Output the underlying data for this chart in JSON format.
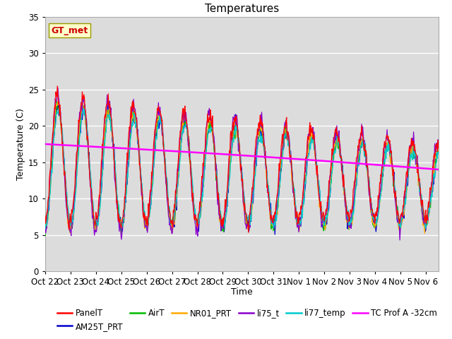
{
  "title": "Temperatures",
  "xlabel": "Time",
  "ylabel": "Temperature (C)",
  "ylim": [
    0,
    35
  ],
  "xlim_days": 15.5,
  "x_tick_labels": [
    "Oct 22",
    "Oct 23",
    "Oct 24",
    "Oct 25",
    "Oct 26",
    "Oct 27",
    "Oct 28",
    "Oct 29",
    "Oct 30",
    "Oct 31",
    "Nov 1",
    "Nov 2",
    "Nov 3",
    "Nov 4",
    "Nov 5",
    "Nov 6"
  ],
  "series_colors": {
    "PanelT": "#ff0000",
    "AM25T_PRT": "#0000cc",
    "AirT": "#00bb00",
    "NR01_PRT": "#ffaa00",
    "li75_t": "#8800cc",
    "li77_temp": "#00cccc",
    "TC_Prof_A": "#ff00ff"
  },
  "annotation_text": "GT_met",
  "annotation_color": "#cc0000",
  "annotation_bg": "#ffffcc",
  "annotation_border": "#999900",
  "plot_bg": "#dcdcdc",
  "title_fontsize": 11,
  "legend_fontsize": 8.5,
  "axis_fontsize": 9
}
